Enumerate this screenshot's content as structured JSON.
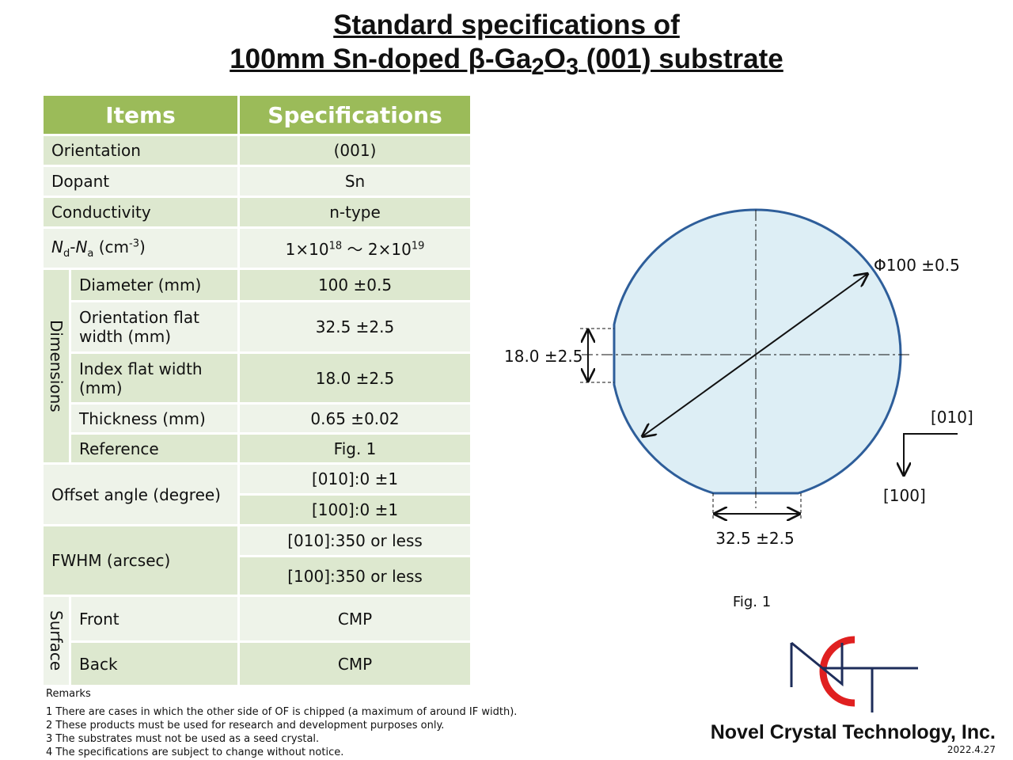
{
  "header": {
    "line1": "Standard specifications of",
    "line2": [
      "100mm Sn-doped β-Ga",
      "2",
      "O",
      "3",
      " (001) substrate"
    ]
  },
  "table": {
    "header": [
      "Items",
      "Specifications"
    ],
    "orientation": [
      "Orientation",
      "(001)"
    ],
    "dopant": [
      "Dopant",
      "Sn"
    ],
    "conductivity": [
      "Conductivity",
      "n-type"
    ],
    "carrier": {
      "label": [
        "N",
        "d",
        "-",
        "N",
        "a",
        " (cm",
        "-3",
        ")"
      ],
      "value": [
        "1×10",
        "18",
        " 〜 2×10",
        "19"
      ]
    },
    "dimensions": {
      "group": "Dimensions",
      "rows": [
        [
          "Diameter (mm)",
          "100 ±0.5"
        ],
        [
          "Orientation flat width (mm)",
          "32.5 ±2.5"
        ],
        [
          "Index flat width (mm)",
          "18.0 ±2.5"
        ],
        [
          "Thickness (mm)",
          "0.65 ±0.02"
        ],
        [
          "Reference",
          "Fig. 1"
        ]
      ]
    },
    "offset": {
      "label": "Offset angle (degree)",
      "values": [
        "[010]:0 ±1",
        "[100]:0 ±1"
      ]
    },
    "fwhm": {
      "label": "FWHM (arcsec)",
      "values": [
        "[010]:350 or less",
        "[100]:350 or less"
      ]
    },
    "surface": {
      "group": "Surface",
      "rows": [
        [
          "Front",
          "CMP"
        ],
        [
          "Back",
          "CMP"
        ]
      ]
    }
  },
  "remarks": {
    "title": "Remarks",
    "items": [
      "1 There are cases in which the other side of OF is chipped (a maximum of around IF width).",
      "2 These products must be used for research and development purposes only.",
      "3 The substrates must not be used as a seed crystal.",
      "4 The specifications are subject to change without notice."
    ]
  },
  "figure": {
    "diameter": "Φ100 ±0.5",
    "index_flat": "18.0 ±2.5",
    "orientation_flat": "32.5 ±2.5",
    "dir_x": "[010]",
    "dir_y": "[100]",
    "caption": "Fig. 1"
  },
  "footer": {
    "company": "Novel Crystal Technology, Inc.",
    "date": "2022.4.27"
  }
}
